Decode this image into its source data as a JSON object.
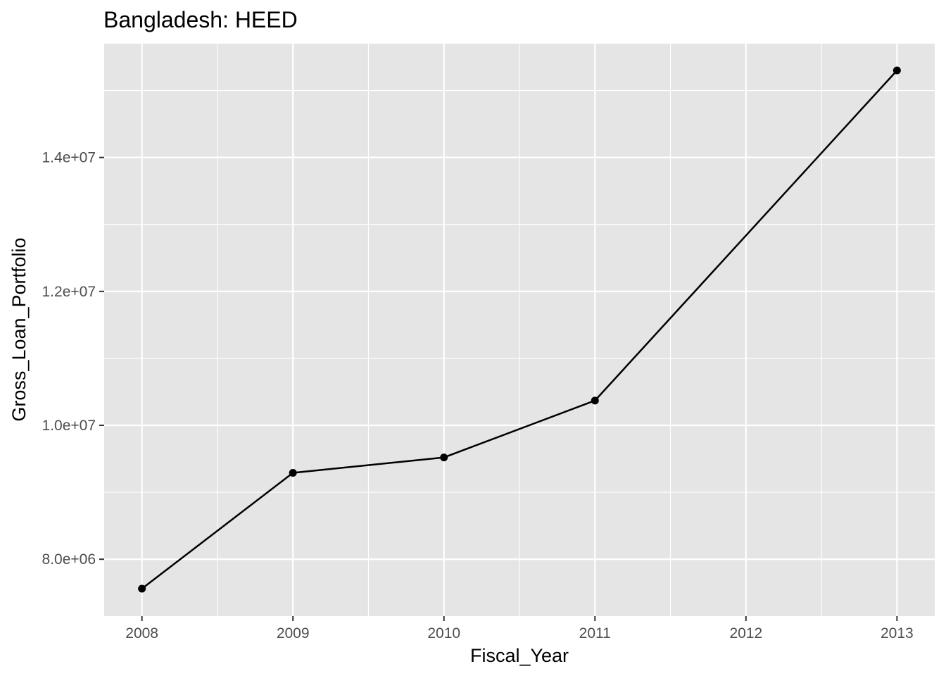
{
  "chart_data": {
    "type": "line",
    "title": "Bangladesh:  HEED",
    "xlabel": "Fiscal_Year",
    "ylabel": "Gross_Loan_Portfolio",
    "x": [
      2008,
      2009,
      2010,
      2011,
      2013
    ],
    "series": [
      {
        "values": [
          7560000,
          9290000,
          9520000,
          10370000,
          15300000
        ]
      }
    ],
    "x_ticks": [
      "2008",
      "2009",
      "2010",
      "2011",
      "2012",
      "2013"
    ],
    "y_ticks": [
      "8.0e+06",
      "1.0e+07",
      "1.2e+07",
      "1.4e+07"
    ],
    "xlim": [
      2007.75,
      2013.25
    ],
    "ylim": [
      7150000,
      15700000
    ],
    "grid": true,
    "colors": {
      "panel_background": "#e5e5e5",
      "grid": "#ffffff",
      "line": "#000000",
      "tick_text": "#4d4d4d"
    }
  }
}
